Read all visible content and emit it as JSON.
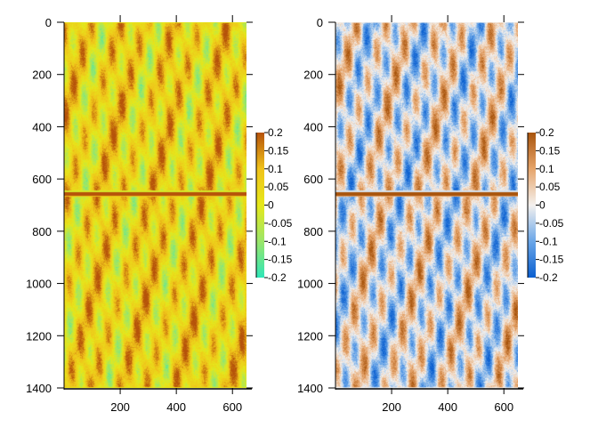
{
  "chart_data": [
    {
      "type": "heatmap",
      "colormap": "yellow-green-orange",
      "colormap_stops": [
        "#2ee6b8",
        "#9be66a",
        "#e6e81a",
        "#f0c21a",
        "#b5520a"
      ],
      "xlim": [
        0,
        650
      ],
      "ylim": [
        1400,
        0
      ],
      "x_ticks": [
        200,
        400,
        600
      ],
      "x_tick_labels": [
        "200",
        "400",
        "600"
      ],
      "y_ticks": [
        0,
        200,
        400,
        600,
        800,
        1000,
        1200,
        1400
      ],
      "y_tick_labels": [
        "0",
        "200",
        "400",
        "600",
        "800",
        "1000",
        "1200",
        "1400"
      ],
      "clim": [
        -0.2,
        0.2
      ],
      "colorbar_ticks": [
        0.2,
        0.15,
        0.1,
        0.05,
        0,
        -0.05,
        -0.1,
        -0.15,
        -0.2
      ],
      "colorbar_labels": [
        "0.2",
        "0.15",
        "0.1",
        "0.05",
        "0",
        "-0.05",
        "-0.1",
        "-0.15",
        "-0.2"
      ],
      "band_y": 655
    },
    {
      "type": "heatmap",
      "colormap": "blue-white-orange",
      "colormap_stops": [
        "#0a5fd0",
        "#6aa6e8",
        "#f4f1ee",
        "#e6a46a",
        "#a8540c"
      ],
      "xlim": [
        0,
        650
      ],
      "ylim": [
        1400,
        0
      ],
      "x_ticks": [
        200,
        400,
        600
      ],
      "x_tick_labels": [
        "200",
        "400",
        "600"
      ],
      "y_ticks": [
        0,
        200,
        400,
        600,
        800,
        1000,
        1200,
        1400
      ],
      "y_tick_labels": [
        "0",
        "200",
        "400",
        "600",
        "800",
        "1000",
        "1200",
        "1400"
      ],
      "clim": [
        -0.2,
        0.2
      ],
      "colorbar_ticks": [
        0.2,
        0.15,
        0.1,
        0.05,
        0,
        -0.05,
        -0.1,
        -0.15,
        -0.2
      ],
      "colorbar_labels": [
        "0.2",
        "0.15",
        "0.1",
        "0.05",
        "0",
        "-0.05",
        "-0.1",
        "-0.15",
        "-0.2"
      ],
      "band_y": 655
    }
  ]
}
